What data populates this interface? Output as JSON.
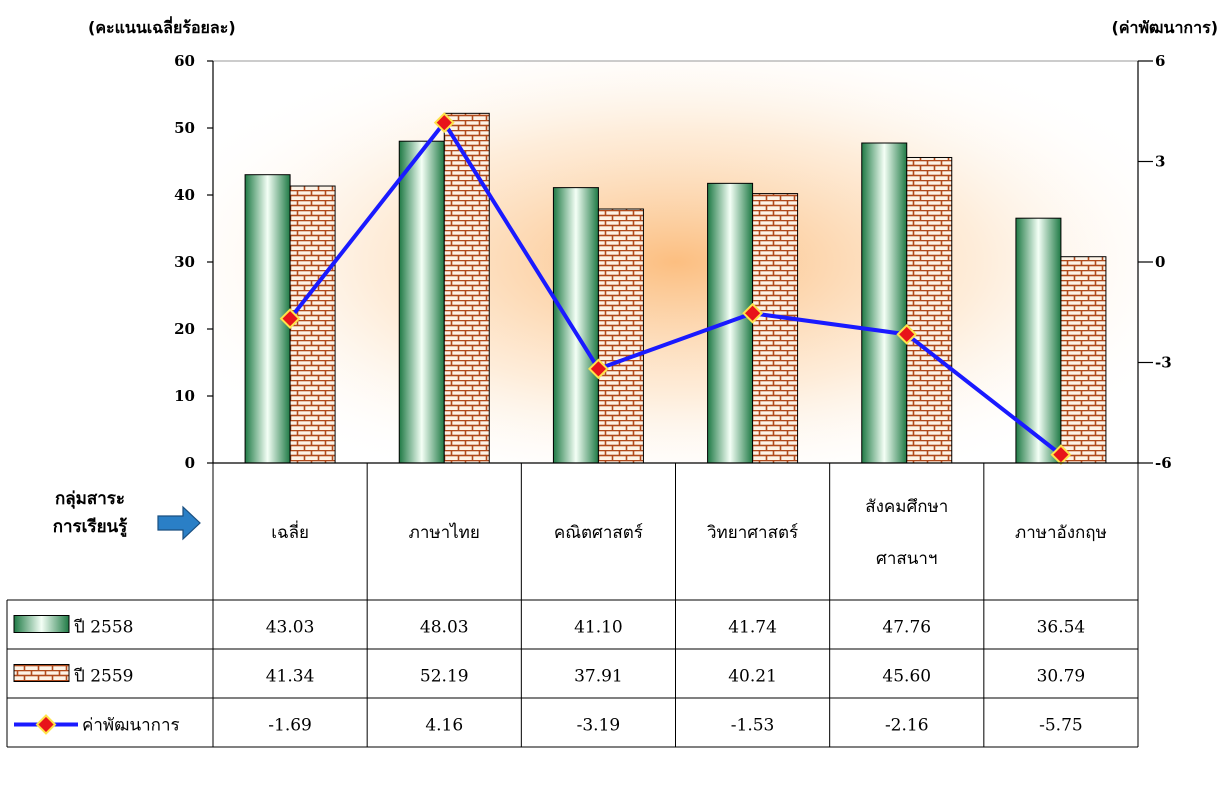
{
  "chart_data": {
    "type": "bar",
    "left_axis_title": "(คะแนนเฉลี่ยร้อยละ)",
    "right_axis_title": "(ค่าพัฒนาการ)",
    "ylim_left": [
      0,
      60
    ],
    "yticks_left": [
      "0",
      "10",
      "20",
      "30",
      "40",
      "50",
      "60"
    ],
    "ylim_right": [
      -6,
      6
    ],
    "yticks_right": [
      "-6",
      "-3",
      "0",
      "3",
      "6"
    ],
    "category_header_line1": "กลุ่มสาระ",
    "category_header_line2": "การเรียนรู้",
    "categories": [
      [
        "เฉลี่ย"
      ],
      [
        "ภาษาไทย"
      ],
      [
        "คณิตศาสตร์"
      ],
      [
        "วิทยาศาสตร์"
      ],
      [
        "สังคมศึกษา",
        "ศาสนาฯ"
      ],
      [
        "ภาษาอังกฤษ"
      ]
    ],
    "series": [
      {
        "name": "ปี 2558",
        "type": "bar",
        "axis": "left",
        "color": "#2e8b57",
        "values": [
          43.03,
          48.03,
          41.1,
          41.74,
          47.76,
          36.54
        ],
        "labels": [
          "43.03",
          "48.03",
          "41.10",
          "41.74",
          "47.76",
          "36.54"
        ]
      },
      {
        "name": "ปี 2559",
        "type": "bar",
        "axis": "left",
        "color": "#b04a1c",
        "values": [
          41.34,
          52.19,
          37.91,
          40.21,
          45.6,
          30.79
        ],
        "labels": [
          "41.34",
          "52.19",
          "37.91",
          "40.21",
          "45.60",
          "30.79"
        ]
      },
      {
        "name": "ค่าพัฒนาการ",
        "type": "line",
        "axis": "right",
        "color": "#1a1aff",
        "values": [
          -1.69,
          4.16,
          -3.19,
          -1.53,
          -2.16,
          -5.75
        ],
        "labels": [
          "-1.69",
          "4.16",
          "-3.19",
          "-1.53",
          "-2.16",
          "-5.75"
        ]
      }
    ]
  }
}
